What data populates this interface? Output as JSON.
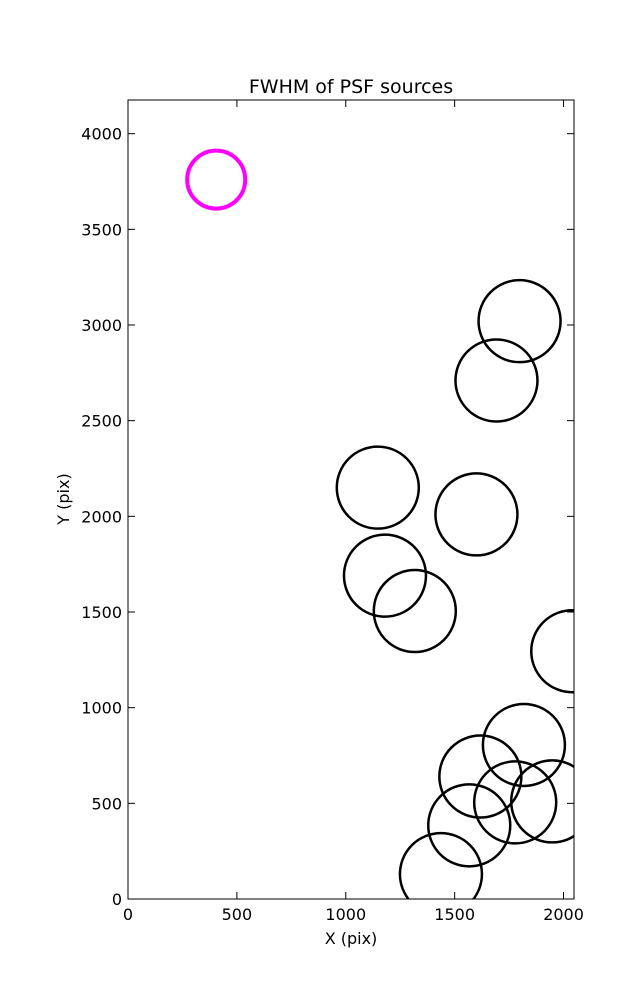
{
  "chart_data": {
    "type": "scatter",
    "title": "FWHM of PSF sources",
    "xlabel": "X (pix)",
    "ylabel": "Y (pix)",
    "xlim": [
      0,
      2048
    ],
    "ylim": [
      0,
      4176
    ],
    "xticks": [
      0,
      500,
      1000,
      1500,
      2000
    ],
    "yticks": [
      0,
      500,
      1000,
      1500,
      2000,
      2500,
      3000,
      3500,
      4000
    ],
    "grid": false,
    "marker": "circle",
    "reference": {
      "x": 405,
      "y": 3760,
      "color": "#ff00ff"
    },
    "points": [
      {
        "x": 1798,
        "y": 3020
      },
      {
        "x": 1692,
        "y": 2710
      },
      {
        "x": 1147,
        "y": 2150
      },
      {
        "x": 1600,
        "y": 2010
      },
      {
        "x": 1180,
        "y": 1690
      },
      {
        "x": 1317,
        "y": 1505
      },
      {
        "x": 2040,
        "y": 1295
      },
      {
        "x": 1818,
        "y": 805
      },
      {
        "x": 1618,
        "y": 640
      },
      {
        "x": 1778,
        "y": 505
      },
      {
        "x": 1948,
        "y": 510
      },
      {
        "x": 1567,
        "y": 385
      },
      {
        "x": 1437,
        "y": 130
      }
    ]
  }
}
